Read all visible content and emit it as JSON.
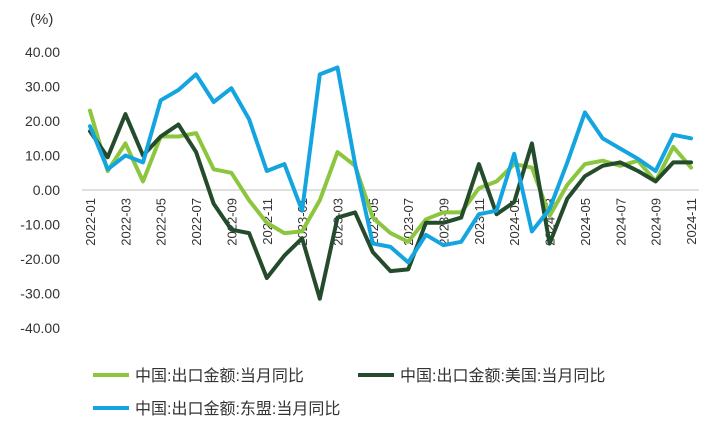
{
  "chart_data": {
    "type": "line",
    "unit_label": "(%)",
    "ylim": [
      -40,
      40
    ],
    "y_ticks": [
      40,
      30,
      20,
      10,
      0,
      -10,
      -20,
      -30,
      -40
    ],
    "y_tick_labels": [
      "40.00",
      "30.00",
      "20.00",
      "10.00",
      "0.00",
      "-10.00",
      "-20.00",
      "-30.00",
      "-40.00"
    ],
    "grid": false,
    "legend_position": "bottom",
    "x": [
      "2022-01",
      "2022-02",
      "2022-03",
      "2022-04",
      "2022-05",
      "2022-06",
      "2022-07",
      "2022-08",
      "2022-09",
      "2022-10",
      "2022-11",
      "2022-12",
      "2023-01",
      "2023-02",
      "2023-03",
      "2023-04",
      "2023-05",
      "2023-06",
      "2023-07",
      "2023-08",
      "2023-09",
      "2023-10",
      "2023-11",
      "2023-12",
      "2024-01",
      "2024-02",
      "2024-03",
      "2024-04",
      "2024-05",
      "2024-06",
      "2024-07",
      "2024-08",
      "2024-09",
      "2024-10",
      "2024-11"
    ],
    "x_tick_labels": [
      "2022-01",
      "2022-03",
      "2022-05",
      "2022-07",
      "2022-09",
      "2022-11",
      "2023-01",
      "2023-03",
      "2023-05",
      "2023-07",
      "2023-09",
      "2023-11",
      "2024-01",
      "2024-03",
      "2024-05",
      "2024-07",
      "2024-09",
      "2024-11"
    ],
    "series": [
      {
        "name": "中国:出口金额:当月同比",
        "color": "#8cc63f",
        "values": [
          23,
          5.5,
          13.5,
          2.5,
          15.5,
          15.5,
          16.5,
          6,
          5,
          -3,
          -9.5,
          -12.5,
          -12,
          -3,
          11,
          7,
          -8,
          -12.5,
          -15,
          -8.5,
          -6.5,
          -6.5,
          0.5,
          2.5,
          7.5,
          6.5,
          -7.5,
          1.5,
          7.5,
          8.5,
          7,
          8.5,
          2.5,
          12.5,
          6.5
        ]
      },
      {
        "name": "中国:出口金额:美国:当月同比",
        "color": "#244b2b",
        "values": [
          17,
          9.5,
          22,
          10,
          15.5,
          19,
          11,
          -4,
          -11.5,
          -12.5,
          -25.5,
          -19,
          -14,
          -31.5,
          -8,
          -6.5,
          -18,
          -23.5,
          -23,
          -9.5,
          -9.5,
          -8,
          7.5,
          -7,
          -3.5,
          13.5,
          -15.5,
          -2.5,
          4,
          7,
          8,
          5.5,
          2.5,
          8,
          8
        ]
      },
      {
        "name": "中国:出口金额:东盟:当月同比",
        "color": "#14a5e0",
        "values": [
          18.5,
          6,
          10,
          8,
          26,
          29,
          33.5,
          25.5,
          29.5,
          20.5,
          5.5,
          7.5,
          -6,
          33.5,
          35.5,
          7.5,
          -15.5,
          -16.5,
          -21,
          -13,
          -16,
          -15,
          -7,
          -6,
          10.5,
          -12,
          -5.5,
          8,
          22.5,
          15,
          12,
          9,
          5.5,
          16,
          15
        ]
      }
    ]
  }
}
